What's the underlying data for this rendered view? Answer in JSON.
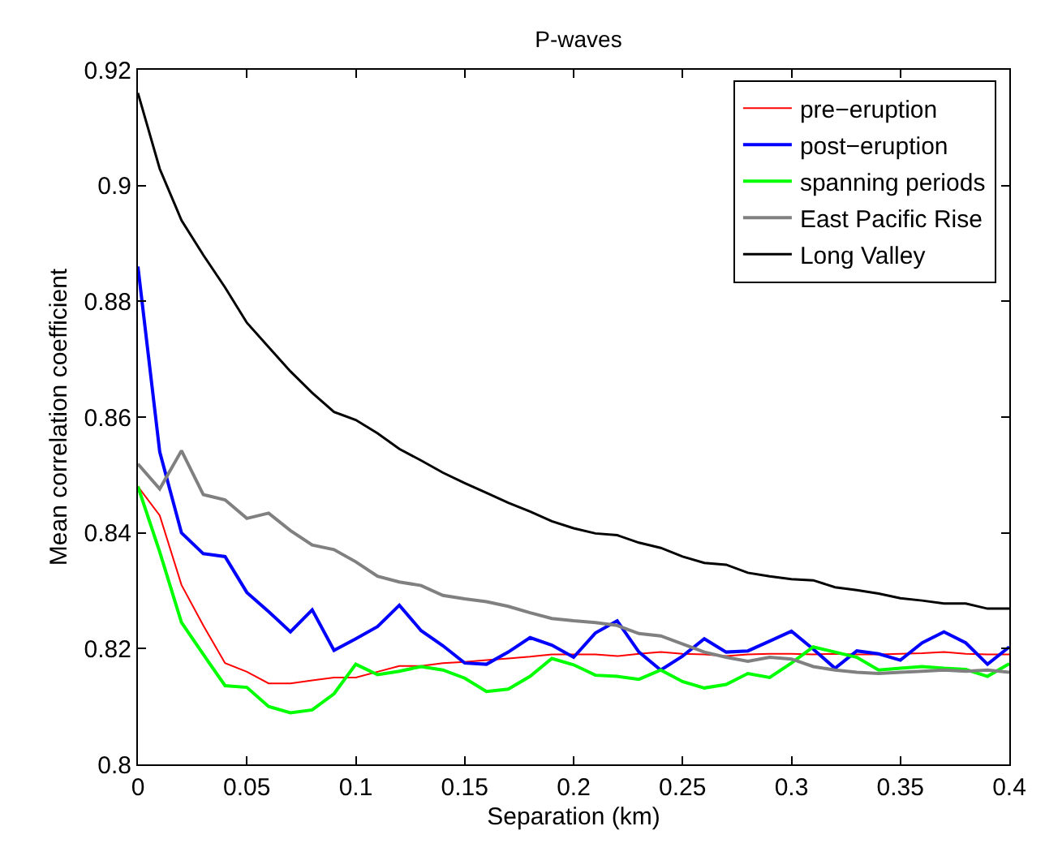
{
  "chart_data": {
    "type": "line",
    "title": "P-waves",
    "xlabel": "Separation (km)",
    "ylabel": "Mean correlation coefficient",
    "x": [
      0,
      0.01,
      0.02,
      0.03,
      0.04,
      0.05,
      0.06,
      0.07,
      0.08,
      0.09,
      0.1,
      0.11,
      0.12,
      0.13,
      0.14,
      0.15,
      0.16,
      0.17,
      0.18,
      0.19,
      0.2,
      0.21,
      0.22,
      0.23,
      0.24,
      0.25,
      0.26,
      0.27,
      0.28,
      0.29,
      0.3,
      0.31,
      0.32,
      0.33,
      0.34,
      0.35,
      0.36,
      0.37,
      0.38,
      0.39,
      0.4
    ],
    "series": [
      {
        "name": "pre−eruption",
        "color": "#ff0000",
        "values": [
          0.848,
          0.843,
          0.831,
          0.824,
          0.8175,
          0.816,
          0.814,
          0.814,
          0.8145,
          0.815,
          0.815,
          0.816,
          0.817,
          0.817,
          0.8175,
          0.8177,
          0.818,
          0.8183,
          0.8186,
          0.819,
          0.819,
          0.819,
          0.8187,
          0.8191,
          0.8194,
          0.8191,
          0.819,
          0.8187,
          0.819,
          0.8191,
          0.8191,
          0.819,
          0.8191,
          0.819,
          0.819,
          0.8191,
          0.8192,
          0.8194,
          0.8191,
          0.819,
          0.819
        ]
      },
      {
        "name": "post−eruption",
        "color": "#0000ff",
        "values": [
          0.886,
          0.854,
          0.84,
          0.8364,
          0.8359,
          0.8297,
          0.8264,
          0.8229,
          0.8267,
          0.8197,
          0.8217,
          0.8238,
          0.8275,
          0.8231,
          0.8205,
          0.8175,
          0.8173,
          0.8194,
          0.8219,
          0.8206,
          0.8185,
          0.8227,
          0.8248,
          0.8194,
          0.8163,
          0.8187,
          0.8217,
          0.8194,
          0.8196,
          0.8213,
          0.823,
          0.8199,
          0.8166,
          0.8196,
          0.8191,
          0.818,
          0.821,
          0.8229,
          0.821,
          0.8173,
          0.8203
        ]
      },
      {
        "name": "spanning periods",
        "color": "#00ff00",
        "values": [
          0.848,
          0.8367,
          0.8245,
          0.819,
          0.8136,
          0.8133,
          0.81,
          0.8089,
          0.8094,
          0.8122,
          0.8173,
          0.8155,
          0.8161,
          0.8169,
          0.8163,
          0.8149,
          0.8126,
          0.813,
          0.8152,
          0.8183,
          0.8172,
          0.8154,
          0.8152,
          0.8147,
          0.8163,
          0.8143,
          0.8132,
          0.8138,
          0.8157,
          0.815,
          0.8175,
          0.8203,
          0.8194,
          0.8185,
          0.8163,
          0.8166,
          0.8169,
          0.8166,
          0.8164,
          0.8152,
          0.8174
        ]
      },
      {
        "name": "East Pacific Rise",
        "color": "#808080",
        "values": [
          0.8519,
          0.8476,
          0.8542,
          0.8466,
          0.8457,
          0.8425,
          0.8434,
          0.8404,
          0.8379,
          0.8371,
          0.835,
          0.8325,
          0.8315,
          0.8309,
          0.8292,
          0.8286,
          0.8281,
          0.8273,
          0.8262,
          0.8252,
          0.8248,
          0.8245,
          0.824,
          0.8226,
          0.8222,
          0.8208,
          0.8194,
          0.8185,
          0.8178,
          0.8185,
          0.8182,
          0.8169,
          0.8163,
          0.8159,
          0.8157,
          0.8159,
          0.8161,
          0.8163,
          0.8161,
          0.8163,
          0.8159
        ]
      },
      {
        "name": "Long Valley",
        "color": "#000000",
        "values": [
          0.916,
          0.9029,
          0.894,
          0.888,
          0.8824,
          0.8763,
          0.8721,
          0.8679,
          0.8642,
          0.8609,
          0.8595,
          0.8572,
          0.8545,
          0.8525,
          0.8504,
          0.8486,
          0.8469,
          0.8452,
          0.8437,
          0.842,
          0.8408,
          0.8399,
          0.8396,
          0.8383,
          0.8374,
          0.8359,
          0.8348,
          0.8345,
          0.8331,
          0.8325,
          0.832,
          0.8318,
          0.8306,
          0.8301,
          0.8295,
          0.8287,
          0.8283,
          0.8278,
          0.8278,
          0.8269,
          0.8269
        ]
      }
    ],
    "xlim": [
      0,
      0.4
    ],
    "xticks": [
      0,
      0.05,
      0.1,
      0.15,
      0.2,
      0.25,
      0.3,
      0.35,
      0.4
    ],
    "ylim": [
      0.8,
      0.92
    ],
    "yticks": [
      0.8,
      0.82,
      0.84,
      0.86,
      0.88,
      0.9,
      0.92
    ],
    "legend": "top right",
    "marker": "none",
    "line_style": "solid"
  }
}
